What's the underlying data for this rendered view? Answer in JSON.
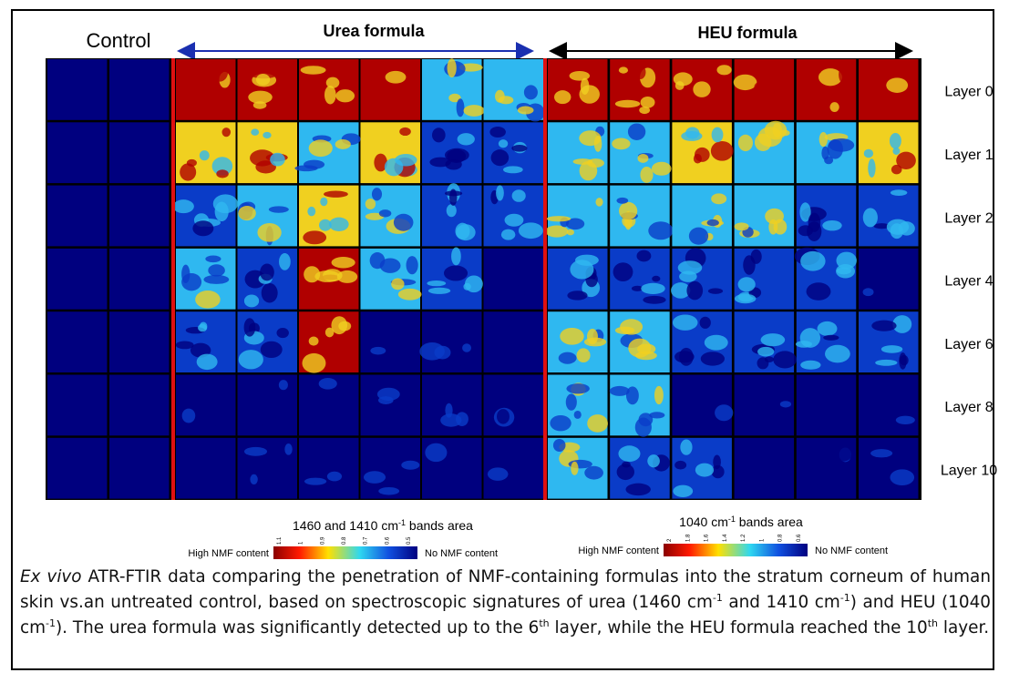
{
  "figure": {
    "group_labels": [
      "Control",
      "Urea formula",
      "HEU formula"
    ],
    "layers": [
      "Layer 0",
      "Layer 1",
      "Layer 2",
      "Layer 4",
      "Layer 6",
      "Layer 8",
      "Layer 10"
    ],
    "colorbars": [
      {
        "title": [
          {
            "text": "1460 and 1410 cm"
          },
          {
            "text": "-1",
            "style": "sup"
          },
          {
            "text": " bands area"
          }
        ],
        "ticks": [
          1.1,
          1,
          0.9,
          0.8,
          0.7,
          0.6,
          0.5
        ],
        "low_label": "High NMF content",
        "high_label": "No NMF content"
      },
      {
        "title": [
          {
            "text": "1040 cm"
          },
          {
            "text": "-1",
            "style": "sup"
          },
          {
            "text": " bands area"
          }
        ],
        "ticks": [
          2,
          1.8,
          1.6,
          1.4,
          1.2,
          1,
          0.8,
          0.6
        ],
        "low_label": "High NMF content",
        "high_label": "No NMF content"
      }
    ]
  },
  "caption": {
    "runs": [
      {
        "text": "Ex vivo",
        "style": "italic"
      },
      {
        "text": " ATR-FTIR data comparing the penetration of NMF-containing formulas into the stratum corneum of human skin vs.an untreated control, based on spectroscopic signatures of urea (1460 cm"
      },
      {
        "text": "-1",
        "style": "sup"
      },
      {
        "text": " and 1410 cm"
      },
      {
        "text": "-1",
        "style": "sup"
      },
      {
        "text": ") and HEU (1040 cm"
      },
      {
        "text": "-1",
        "style": "sup"
      },
      {
        "text": "). The urea formula was significantly detected up to the 6"
      },
      {
        "text": "th",
        "style": "sup"
      },
      {
        "text": " layer, while the HEU formula reached the 10"
      },
      {
        "text": "th",
        "style": "sup"
      },
      {
        "text": " layer."
      }
    ]
  }
}
